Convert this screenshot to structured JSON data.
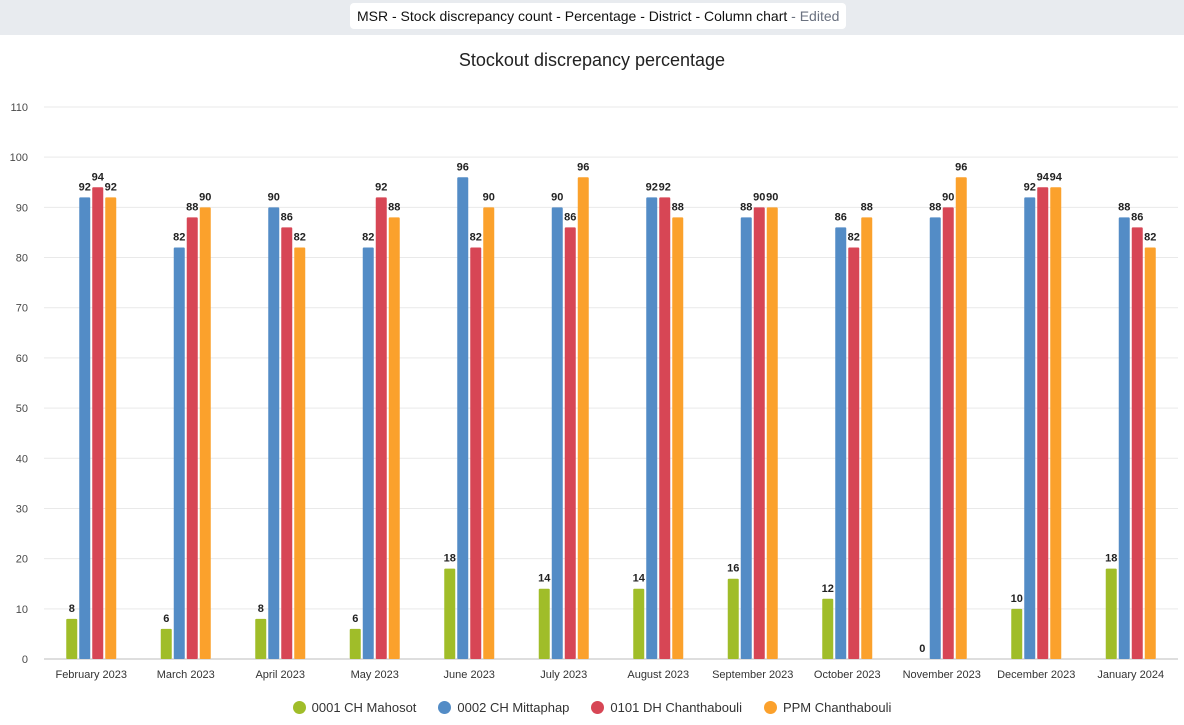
{
  "header": {
    "title": "MSR - Stock discrepancy count - Percentage - District - Column chart",
    "status": " - Edited"
  },
  "chart_data": {
    "type": "bar",
    "title": "Stockout discrepancy percentage",
    "xlabel": "",
    "ylabel": "",
    "ylim": [
      0,
      110
    ],
    "yticks": [
      0,
      10,
      20,
      30,
      40,
      50,
      60,
      70,
      80,
      90,
      100,
      110
    ],
    "grid": true,
    "legend_position": "bottom",
    "categories": [
      "February 2023",
      "March 2023",
      "April 2023",
      "May 2023",
      "June 2023",
      "July 2023",
      "August 2023",
      "September 2023",
      "October 2023",
      "November 2023",
      "December 2023",
      "January 2024"
    ],
    "series": [
      {
        "name": "0001 CH Mahosot",
        "color": "#a0bd29",
        "values": [
          8,
          6,
          8,
          6,
          18,
          14,
          14,
          16,
          12,
          0,
          10,
          18
        ]
      },
      {
        "name": "0002 CH Mittaphap",
        "color": "#538cc6",
        "values": [
          92,
          82,
          90,
          82,
          96,
          90,
          92,
          88,
          86,
          88,
          92,
          88
        ]
      },
      {
        "name": "0101 DH Chanthabouli",
        "color": "#d74655",
        "values": [
          94,
          88,
          86,
          92,
          82,
          86,
          92,
          90,
          82,
          90,
          94,
          86
        ]
      },
      {
        "name": "PPM Chanthabouli",
        "color": "#fba12c",
        "values": [
          92,
          90,
          82,
          88,
          90,
          96,
          88,
          90,
          88,
          96,
          94,
          82
        ]
      }
    ]
  }
}
